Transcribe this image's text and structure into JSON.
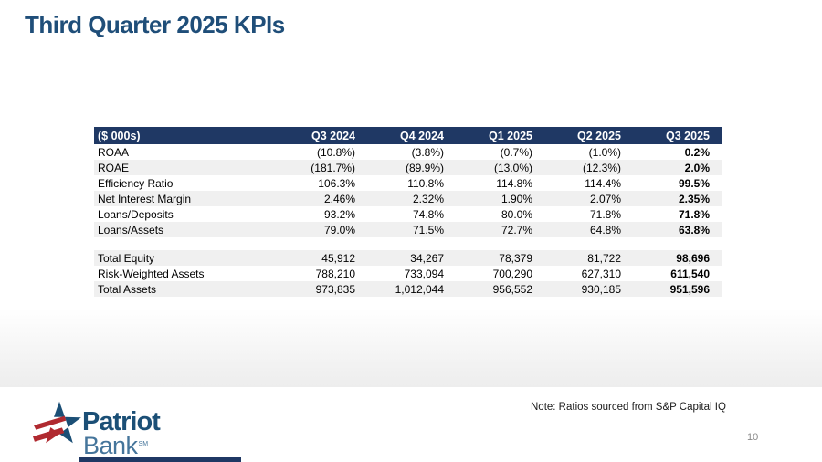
{
  "slide": {
    "title": "Third Quarter 2025 KPIs",
    "note": "Note: Ratios sourced from S&P Capital IQ",
    "page_number": "10"
  },
  "colors": {
    "title_blue": "#1F4E79",
    "header_navy": "#1F3864",
    "row_alt_gray": "#F0F0F0",
    "logo_dark_blue": "#1B4F76",
    "logo_light_blue": "#45759B",
    "logo_red": "#B02A30",
    "page_number_gray": "#8A8A8A"
  },
  "table": {
    "header": [
      "($ 000s)",
      "Q3 2024",
      "Q4 2024",
      "Q1 2025",
      "Q2 2025",
      "Q3 2025"
    ],
    "rows": [
      {
        "label": "ROAA",
        "cells": [
          "(10.8%)",
          "(3.8%)",
          "(0.7%)",
          "(1.0%)",
          "0.2%"
        ]
      },
      {
        "label": "ROAE",
        "cells": [
          "(181.7%)",
          "(89.9%)",
          "(13.0%)",
          "(12.3%)",
          "2.0%"
        ]
      },
      {
        "label": "Efficiency Ratio",
        "cells": [
          "106.3%",
          "110.8%",
          "114.8%",
          "114.4%",
          "99.5%"
        ]
      },
      {
        "label": "Net Interest Margin",
        "cells": [
          "2.46%",
          "2.32%",
          "1.90%",
          "2.07%",
          "2.35%"
        ]
      },
      {
        "label": "Loans/Deposits",
        "cells": [
          "93.2%",
          "74.8%",
          "80.0%",
          "71.8%",
          "71.8%"
        ]
      },
      {
        "label": "Loans/Assets",
        "cells": [
          "79.0%",
          "71.5%",
          "72.7%",
          "64.8%",
          "63.8%"
        ]
      },
      {
        "label": "",
        "cells": [
          "",
          "",
          "",
          "",
          ""
        ],
        "spacer": true
      },
      {
        "label": "Total Equity",
        "cells": [
          "45,912",
          "34,267",
          "78,379",
          "81,722",
          "98,696"
        ]
      },
      {
        "label": "Risk-Weighted Assets",
        "cells": [
          "788,210",
          "733,094",
          "700,290",
          "627,310",
          "611,540"
        ]
      },
      {
        "label": "Total Assets",
        "cells": [
          "973,835",
          "1,012,044",
          "956,552",
          "930,185",
          "951,596"
        ]
      }
    ]
  },
  "logo": {
    "line1": "Patriot",
    "line2": "Bank",
    "trademark": "SM"
  }
}
